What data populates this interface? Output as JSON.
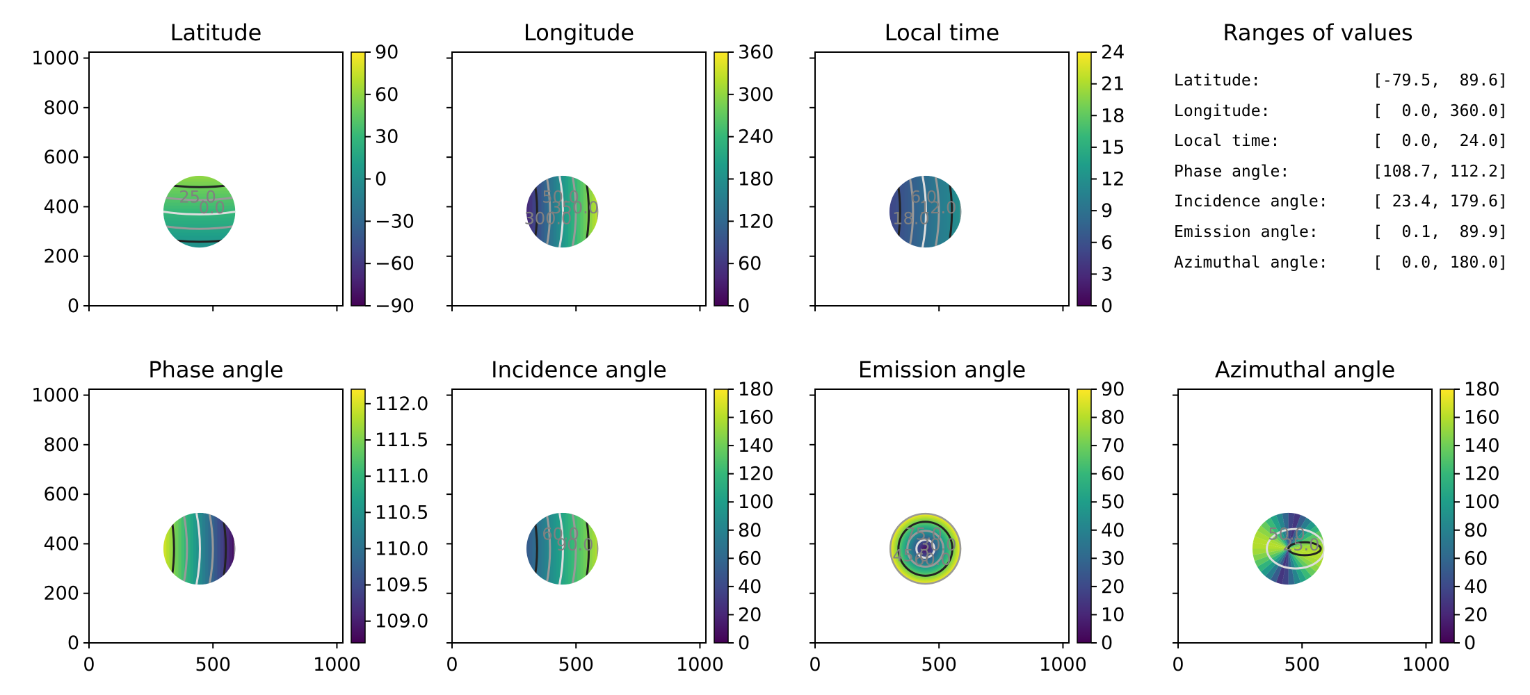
{
  "figure": {
    "colors": {
      "low": "#440154",
      "mid": "#21918c",
      "high": "#fde725",
      "contour_dark": "#222222",
      "contour_light": "#dddddd",
      "contour_grey": "#999999"
    },
    "axes": {
      "x_ticks": [
        "0",
        "500",
        "1000"
      ],
      "y_ticks": [
        "0",
        "200",
        "400",
        "600",
        "800",
        "1000"
      ],
      "xlim": [
        0,
        1024
      ],
      "ylim": [
        0,
        1024
      ]
    },
    "disk": {
      "center_x": 445,
      "center_y": 380,
      "radius": 145
    }
  },
  "chart_data": [
    {
      "type": "heatmap",
      "title": "Latitude",
      "colorbar": {
        "ticks": [
          "−90",
          "−60",
          "−30",
          "0",
          "30",
          "60",
          "90"
        ],
        "min": -90,
        "max": 90
      },
      "pattern": "horizontal-bands",
      "value_range": [
        0,
        60
      ],
      "contour_labels": [
        "25.0",
        "0.0"
      ]
    },
    {
      "type": "heatmap",
      "title": "Longitude",
      "colorbar": {
        "ticks": [
          "0",
          "60",
          "120",
          "180",
          "240",
          "300",
          "360"
        ],
        "min": 0,
        "max": 360
      },
      "pattern": "vertical-bands",
      "value_range": [
        40,
        330
      ],
      "contour_labels": [
        "50.0",
        "350.0",
        "300.0"
      ]
    },
    {
      "type": "heatmap",
      "title": "Local time",
      "colorbar": {
        "ticks": [
          "0",
          "3",
          "6",
          "9",
          "12",
          "15",
          "18",
          "21",
          "24"
        ],
        "min": 0,
        "max": 24
      },
      "pattern": "vertical-bands",
      "value_range": [
        5,
        12
      ],
      "contour_labels": [
        "6.0",
        "12.0",
        "18.0"
      ]
    },
    {
      "type": "text",
      "title": "Ranges of values",
      "rows": [
        {
          "label": "Latitude:",
          "value": "[-79.5,  89.6]"
        },
        {
          "label": "Longitude:",
          "value": "[  0.0, 360.0]"
        },
        {
          "label": "Local time:",
          "value": "[  0.0,  24.0]"
        },
        {
          "label": "Phase angle:",
          "value": "[108.7, 112.2]"
        },
        {
          "label": "Incidence angle:",
          "value": "[ 23.4, 179.6]"
        },
        {
          "label": "Emission angle:",
          "value": "[  0.1,  89.9]"
        },
        {
          "label": "Azimuthal angle:",
          "value": "[  0.0, 180.0]"
        }
      ]
    },
    {
      "type": "heatmap",
      "title": "Phase angle",
      "colorbar": {
        "ticks": [
          "109.0",
          "109.5",
          "110.0",
          "110.5",
          "111.0",
          "111.5",
          "112.0"
        ],
        "min": 108.7,
        "max": 112.2
      },
      "pattern": "vertical-bands-reverse",
      "value_range": [
        108.8,
        112.0
      ],
      "contour_labels": []
    },
    {
      "type": "heatmap",
      "title": "Incidence angle",
      "colorbar": {
        "ticks": [
          "0",
          "20",
          "40",
          "60",
          "80",
          "100",
          "120",
          "140",
          "160",
          "180"
        ],
        "min": 0,
        "max": 180
      },
      "pattern": "vertical-bands",
      "value_range": [
        50,
        160
      ],
      "contour_labels": [
        "60.0",
        "90.0"
      ]
    },
    {
      "type": "heatmap",
      "title": "Emission angle",
      "colorbar": {
        "ticks": [
          "0",
          "10",
          "20",
          "30",
          "40",
          "50",
          "60",
          "70",
          "80",
          "90"
        ],
        "min": 0,
        "max": 90
      },
      "pattern": "radial",
      "value_range": [
        0,
        90
      ],
      "contour_labels": [
        "75.0",
        "30.0",
        "45.0",
        "60.0"
      ]
    },
    {
      "type": "heatmap",
      "title": "Azimuthal angle",
      "colorbar": {
        "ticks": [
          "0",
          "20",
          "40",
          "60",
          "80",
          "100",
          "120",
          "140",
          "160",
          "180"
        ],
        "min": 0,
        "max": 180
      },
      "pattern": "azimuthal",
      "value_range": [
        20,
        160
      ],
      "contour_labels": [
        "50.0",
        "25.0"
      ]
    }
  ]
}
